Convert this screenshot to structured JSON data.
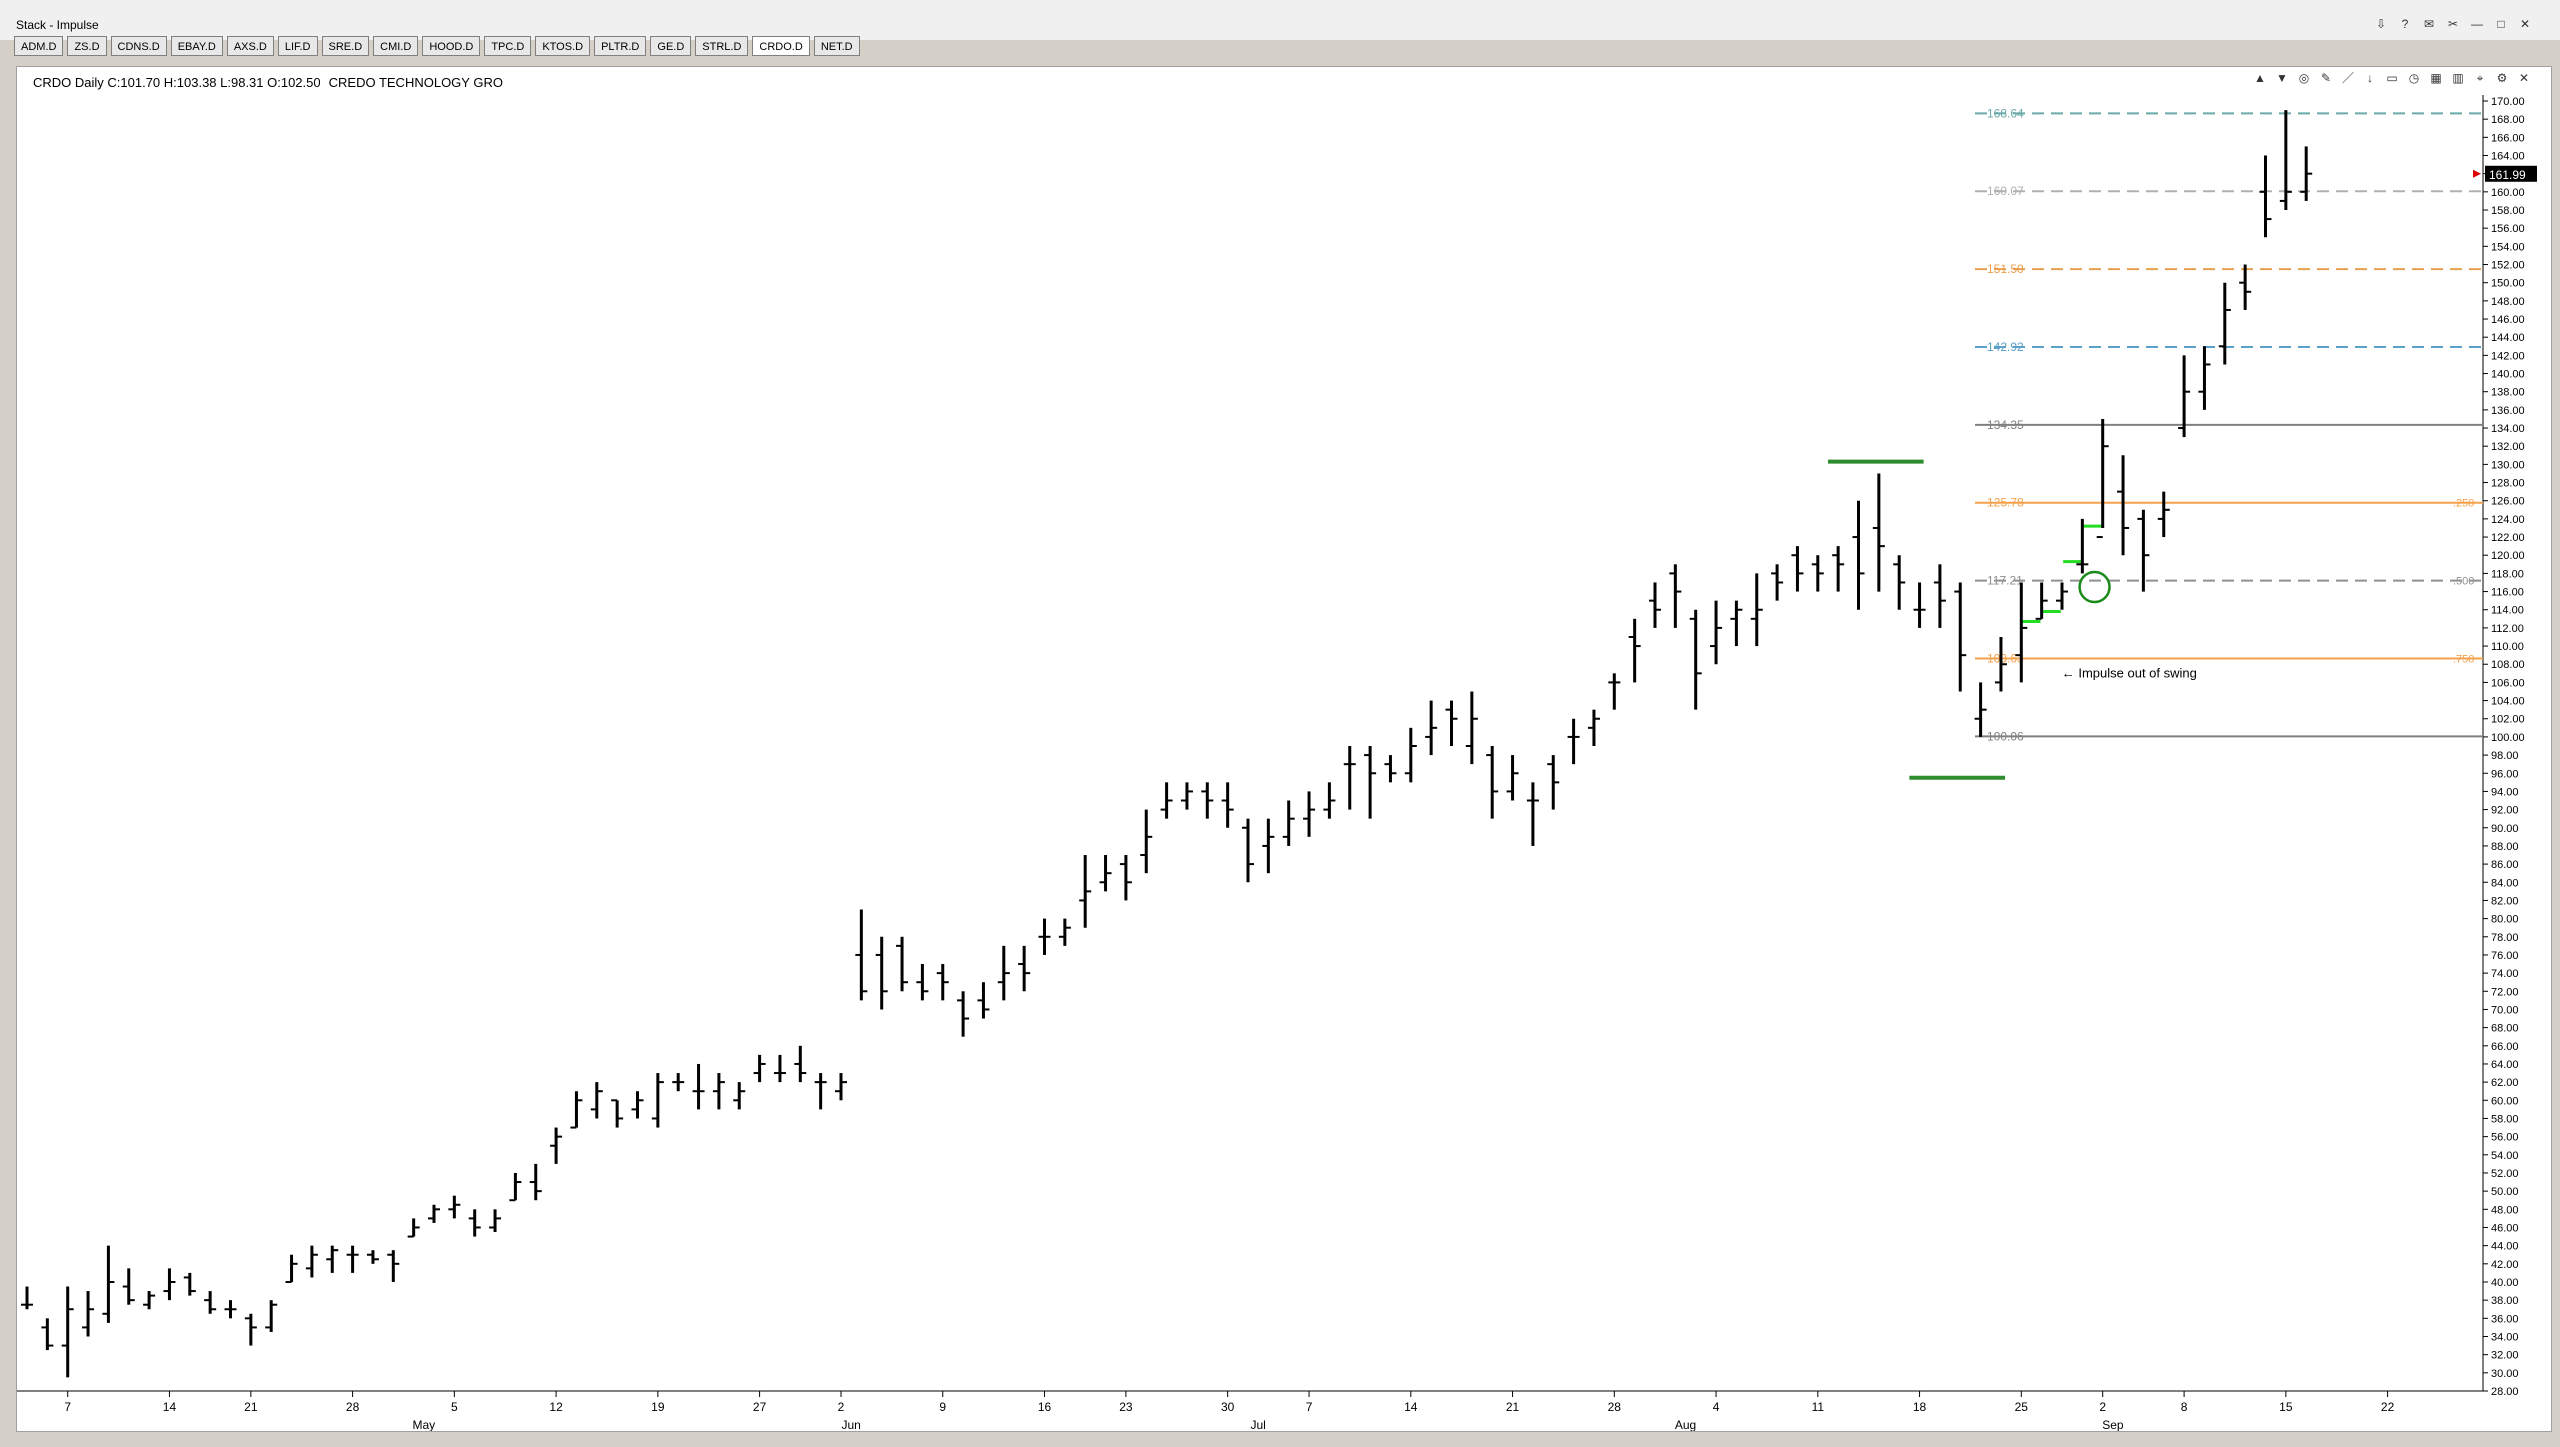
{
  "window": {
    "title": "Stack - Impulse"
  },
  "window_controls": [
    "⇩",
    "?",
    "✉",
    "✂",
    "—",
    "□",
    "✕"
  ],
  "tabs": [
    {
      "label": "ADM.D"
    },
    {
      "label": "ZS.D"
    },
    {
      "label": "CDNS.D"
    },
    {
      "label": "EBAY.D"
    },
    {
      "label": "AXS.D"
    },
    {
      "label": "LIF.D"
    },
    {
      "label": "SRE.D"
    },
    {
      "label": "CMI.D"
    },
    {
      "label": "HOOD.D"
    },
    {
      "label": "TPC.D"
    },
    {
      "label": "KTOS.D"
    },
    {
      "label": "PLTR.D"
    },
    {
      "label": "GE.D"
    },
    {
      "label": "STRL.D"
    },
    {
      "label": "CRDO.D"
    },
    {
      "label": "NET.D"
    }
  ],
  "active_tab": "CRDO.D",
  "chart_header": {
    "summary": "CRDO Daily  C:101.70  H:103.38  L:98.31  O:102.50",
    "name": "CREDO TECHNOLOGY GRO"
  },
  "chart_toolbar_icons": [
    "layers-icon",
    "filter-icon",
    "target-icon",
    "pencil-icon",
    "line-icon",
    "arrow-icon",
    "rect-icon",
    "clock-icon",
    "grid-icon",
    "trash-icon",
    "pin-icon",
    "settings-icon",
    "close-icon"
  ],
  "chart_data": {
    "type": "ohlc",
    "ylim": [
      28,
      170
    ],
    "ytick_step": 2,
    "last_price": "161.99",
    "x_ticks": [
      {
        "label": "7",
        "i": 2
      },
      {
        "label": "14",
        "i": 7
      },
      {
        "label": "21",
        "i": 11
      },
      {
        "label": "28",
        "i": 16
      },
      {
        "label": "5",
        "i": 21
      },
      {
        "label": "12",
        "i": 26
      },
      {
        "label": "19",
        "i": 31
      },
      {
        "label": "27",
        "i": 36
      },
      {
        "label": "2",
        "i": 40
      },
      {
        "label": "9",
        "i": 45
      },
      {
        "label": "16",
        "i": 50
      },
      {
        "label": "23",
        "i": 54
      },
      {
        "label": "30",
        "i": 59
      },
      {
        "label": "7",
        "i": 63
      },
      {
        "label": "14",
        "i": 68
      },
      {
        "label": "21",
        "i": 73
      },
      {
        "label": "28",
        "i": 78
      },
      {
        "label": "4",
        "i": 83
      },
      {
        "label": "11",
        "i": 88
      },
      {
        "label": "18",
        "i": 93
      },
      {
        "label": "25",
        "i": 98
      },
      {
        "label": "2",
        "i": 102
      },
      {
        "label": "8",
        "i": 106
      },
      {
        "label": "15",
        "i": 111
      },
      {
        "label": "22",
        "i": 116
      }
    ],
    "month_labels": [
      {
        "label": "May",
        "i": 19.5
      },
      {
        "label": "Jun",
        "i": 40.5
      },
      {
        "label": "Jul",
        "i": 60.5
      },
      {
        "label": "Aug",
        "i": 81.5
      },
      {
        "label": "Sep",
        "i": 102.5
      }
    ],
    "bars": [
      [
        37.5,
        39.5,
        37,
        37.5
      ],
      [
        35,
        36,
        32.5,
        33
      ],
      [
        33,
        39.5,
        29.5,
        37
      ],
      [
        35,
        39,
        34,
        37
      ],
      [
        36.5,
        44,
        35.5,
        40
      ],
      [
        39.5,
        41.5,
        37.5,
        38
      ],
      [
        37.5,
        39,
        37,
        38.5
      ],
      [
        39,
        41.5,
        38,
        40
      ],
      [
        40.5,
        41,
        38.5,
        39
      ],
      [
        38,
        39,
        36.5,
        37
      ],
      [
        37,
        38,
        36,
        37
      ],
      [
        36,
        36.5,
        33,
        35
      ],
      [
        35,
        38,
        34.5,
        37.5
      ],
      [
        40,
        43,
        40,
        42
      ],
      [
        41.5,
        44,
        40.5,
        43
      ],
      [
        42.5,
        44,
        41,
        43.5
      ],
      [
        43,
        44,
        41,
        43
      ],
      [
        43,
        43.5,
        42,
        42.5
      ],
      [
        43,
        43.5,
        40,
        42
      ],
      [
        45,
        47,
        45,
        46
      ],
      [
        47,
        48.5,
        46.5,
        48
      ],
      [
        48,
        49.5,
        47,
        48.5
      ],
      [
        47,
        48,
        45,
        46
      ],
      [
        46,
        48,
        45.5,
        47
      ],
      [
        49,
        52,
        49,
        51
      ],
      [
        51,
        53,
        49,
        50
      ],
      [
        55,
        57,
        53,
        56
      ],
      [
        57,
        61,
        57,
        60
      ],
      [
        59,
        62,
        58,
        61
      ],
      [
        60,
        60,
        57,
        58
      ],
      [
        59,
        61,
        58,
        60
      ],
      [
        58,
        63,
        57,
        62
      ],
      [
        62,
        63,
        61,
        62
      ],
      [
        61,
        64,
        59,
        61
      ],
      [
        61,
        63,
        59,
        62
      ],
      [
        60,
        62,
        59,
        61
      ],
      [
        63,
        65,
        62,
        64
      ],
      [
        63,
        65,
        62,
        63
      ],
      [
        64,
        66,
        62,
        63
      ],
      [
        62,
        63,
        59,
        62
      ],
      [
        61,
        63,
        60,
        62
      ],
      [
        76,
        81,
        71,
        72
      ],
      [
        76,
        78,
        70,
        72
      ],
      [
        77,
        78,
        72,
        73
      ],
      [
        73,
        75,
        71,
        72
      ],
      [
        74,
        75,
        71,
        73
      ],
      [
        71,
        72,
        67,
        69
      ],
      [
        71,
        73,
        69,
        70
      ],
      [
        73,
        77,
        71,
        74
      ],
      [
        75,
        77,
        72,
        74
      ],
      [
        78,
        80,
        76,
        78
      ],
      [
        78,
        80,
        77,
        79
      ],
      [
        82,
        87,
        79,
        83
      ],
      [
        84,
        87,
        83,
        85
      ],
      [
        86,
        87,
        82,
        84
      ],
      [
        87,
        92,
        85,
        89
      ],
      [
        92,
        95,
        91,
        93
      ],
      [
        93,
        95,
        92,
        94
      ],
      [
        94,
        95,
        91,
        93
      ],
      [
        93,
        95,
        90,
        92
      ],
      [
        90,
        91,
        84,
        86
      ],
      [
        88,
        91,
        85,
        89
      ],
      [
        89,
        93,
        88,
        91
      ],
      [
        91,
        94,
        89,
        92
      ],
      [
        92,
        95,
        91,
        93
      ],
      [
        97,
        99,
        92,
        97
      ],
      [
        98,
        99,
        91,
        96
      ],
      [
        97,
        98,
        95,
        96
      ],
      [
        96,
        101,
        95,
        99
      ],
      [
        100,
        104,
        98,
        101
      ],
      [
        103,
        104,
        99,
        102
      ],
      [
        99,
        105,
        97,
        102
      ],
      [
        98,
        99,
        91,
        94
      ],
      [
        94,
        98,
        93,
        96
      ],
      [
        93,
        95,
        88,
        93
      ],
      [
        97,
        98,
        92,
        95
      ],
      [
        100,
        102,
        97,
        100
      ],
      [
        101,
        103,
        99,
        102
      ],
      [
        106,
        107,
        103,
        106
      ],
      [
        111,
        113,
        106,
        110
      ],
      [
        115,
        117,
        112,
        114
      ],
      [
        118,
        119,
        112,
        116
      ],
      [
        113,
        114,
        103,
        107
      ],
      [
        110,
        115,
        108,
        112
      ],
      [
        113,
        115,
        110,
        114
      ],
      [
        113,
        118,
        110,
        114
      ],
      [
        118,
        119,
        115,
        117
      ],
      [
        120,
        121,
        116,
        118
      ],
      [
        119,
        120,
        116,
        118
      ],
      [
        120,
        121,
        116,
        119
      ],
      [
        122,
        126,
        114,
        118
      ],
      [
        123,
        129,
        116,
        121
      ],
      [
        119,
        120,
        114,
        117
      ],
      [
        114,
        117,
        112,
        114
      ],
      [
        117,
        119,
        112,
        115
      ],
      [
        116,
        117,
        105,
        109
      ],
      [
        102,
        106,
        100,
        103
      ],
      [
        106,
        111,
        105,
        108
      ],
      [
        109,
        117,
        106,
        112
      ],
      [
        113,
        117,
        113,
        115
      ],
      [
        115,
        117,
        114,
        116
      ],
      [
        119,
        124,
        118,
        119
      ],
      [
        122,
        135,
        123,
        132
      ],
      [
        127,
        131,
        120,
        123
      ],
      [
        124,
        125,
        116,
        120
      ],
      [
        124,
        127,
        122,
        125
      ],
      [
        134,
        142,
        133,
        138
      ],
      [
        138,
        143,
        136,
        141
      ],
      [
        143,
        150,
        141,
        147
      ],
      [
        150,
        152,
        147,
        149
      ],
      [
        160,
        164,
        155,
        157
      ],
      [
        159,
        169,
        158,
        160
      ],
      [
        160,
        165,
        159,
        162
      ]
    ],
    "levels": [
      {
        "label": "100.06",
        "value": 100.06,
        "color": "#808080",
        "style": "solid",
        "right": ""
      },
      {
        "label": "108.63",
        "value": 108.63,
        "color": "#f5a04a",
        "style": "solid",
        "right": ".750"
      },
      {
        "label": "117.21",
        "value": 117.21,
        "color": "#909090",
        "style": "dash",
        "right": ".500"
      },
      {
        "label": "125.78",
        "value": 125.78,
        "color": "#f5a04a",
        "style": "solid",
        "right": ".250"
      },
      {
        "label": "134.35",
        "value": 134.35,
        "color": "#808080",
        "style": "solid",
        "right": ""
      },
      {
        "label": "142.92",
        "value": 142.92,
        "color": "#5aa0c8",
        "style": "dash",
        "right": ""
      },
      {
        "label": "151.50",
        "value": 151.5,
        "color": "#e8a050",
        "style": "dash",
        "right": ""
      },
      {
        "label": "160.07",
        "value": 160.07,
        "color": "#b0b0b0",
        "style": "dash",
        "right": ""
      },
      {
        "label": "168.64",
        "value": 168.64,
        "color": "#6aaaa8",
        "style": "dash",
        "right": ""
      }
    ],
    "annotation": {
      "text": "Impulse out of swing",
      "value": 107.0,
      "i": 99.3
    },
    "swing_marks": [
      {
        "value": 130.3,
        "i0": 88.5,
        "i1": 93.2,
        "color": "#2e8b2e"
      },
      {
        "value": 95.5,
        "i0": 92.5,
        "i1": 97.2,
        "color": "#2e8b2e"
      }
    ],
    "green_dashes": [
      {
        "value": 112.7,
        "i": 98.5
      },
      {
        "value": 113.8,
        "i": 99.5
      },
      {
        "value": 119.3,
        "i": 100.5
      },
      {
        "value": 123.2,
        "i": 101.5
      }
    ],
    "circle": {
      "value": 116.5,
      "i": 101.6
    },
    "bar_x0": 0,
    "bar_count": 117
  }
}
